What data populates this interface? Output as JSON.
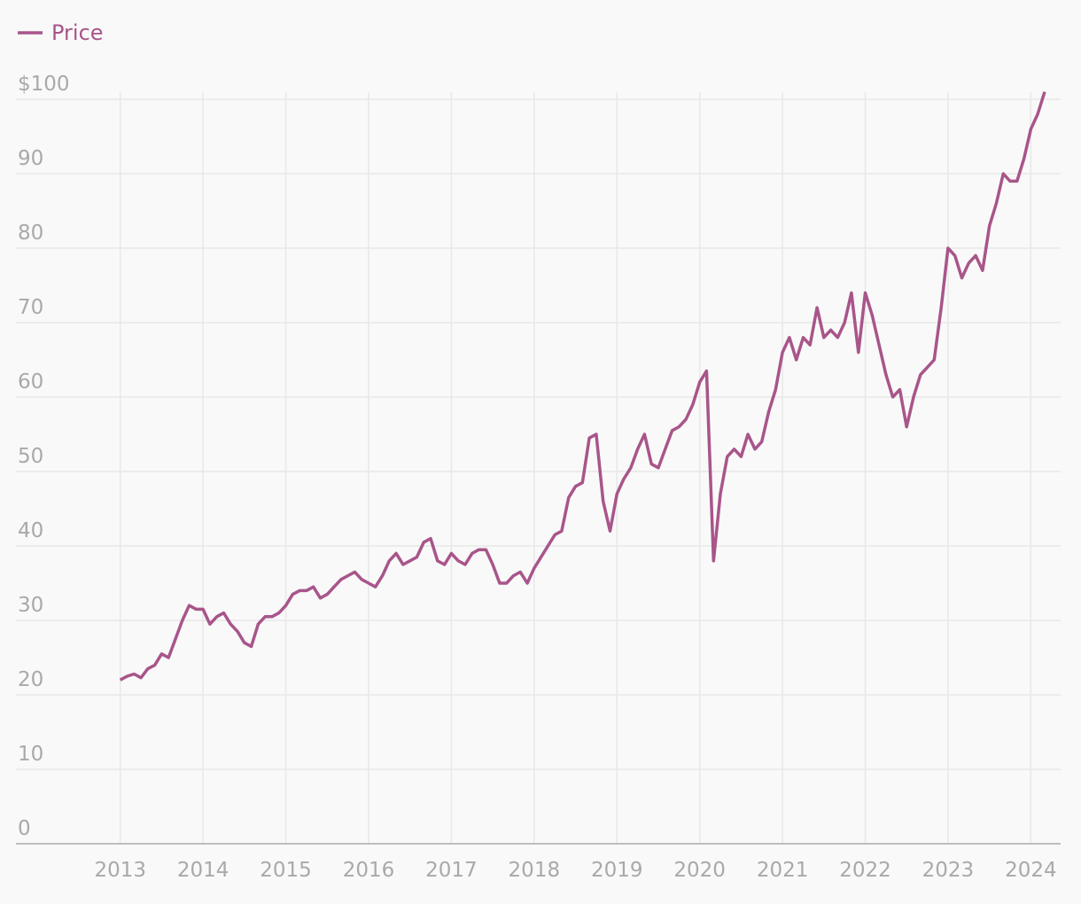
{
  "chart_data": {
    "type": "line",
    "x": [
      2013,
      2013.083,
      2013.167,
      2013.25,
      2013.333,
      2013.417,
      2013.5,
      2013.583,
      2013.667,
      2013.75,
      2013.833,
      2013.917,
      2014,
      2014.083,
      2014.167,
      2014.25,
      2014.333,
      2014.417,
      2014.5,
      2014.583,
      2014.667,
      2014.75,
      2014.833,
      2014.917,
      2015,
      2015.083,
      2015.167,
      2015.25,
      2015.333,
      2015.417,
      2015.5,
      2015.583,
      2015.667,
      2015.75,
      2015.833,
      2015.917,
      2016,
      2016.083,
      2016.167,
      2016.25,
      2016.333,
      2016.417,
      2016.5,
      2016.583,
      2016.667,
      2016.75,
      2016.833,
      2016.917,
      2017,
      2017.083,
      2017.167,
      2017.25,
      2017.333,
      2017.417,
      2017.5,
      2017.583,
      2017.667,
      2017.75,
      2017.833,
      2017.917,
      2018,
      2018.083,
      2018.167,
      2018.25,
      2018.333,
      2018.417,
      2018.5,
      2018.583,
      2018.667,
      2018.75,
      2018.833,
      2018.917,
      2019,
      2019.083,
      2019.167,
      2019.25,
      2019.333,
      2019.417,
      2019.5,
      2019.583,
      2019.667,
      2019.75,
      2019.833,
      2019.917,
      2020,
      2020.083,
      2020.167,
      2020.25,
      2020.333,
      2020.417,
      2020.5,
      2020.583,
      2020.667,
      2020.75,
      2020.833,
      2020.917,
      2021,
      2021.083,
      2021.167,
      2021.25,
      2021.333,
      2021.417,
      2021.5,
      2021.583,
      2021.667,
      2021.75,
      2021.833,
      2021.917,
      2022,
      2022.083,
      2022.167,
      2022.25,
      2022.333,
      2022.417,
      2022.5,
      2022.583,
      2022.667,
      2022.75,
      2022.833,
      2022.917,
      2023,
      2023.083,
      2023.167,
      2023.25,
      2023.333,
      2023.417,
      2023.5,
      2023.583,
      2023.667,
      2023.75,
      2023.833,
      2023.917,
      2024,
      2024.083,
      2024.167
    ],
    "series": [
      {
        "name": "Price",
        "color": "#a8558a",
        "values": [
          22,
          22.5,
          22.8,
          22.3,
          23.5,
          24,
          25.5,
          25,
          27.5,
          30,
          32,
          31.5,
          31.5,
          29.5,
          30.5,
          31,
          29.5,
          28.5,
          27,
          26.5,
          29.5,
          30.5,
          30.5,
          31,
          32,
          33.5,
          34,
          34,
          34.5,
          33,
          33.5,
          34.5,
          35.5,
          36,
          36.5,
          35.5,
          35,
          34.5,
          36,
          38,
          39,
          37.5,
          38,
          38.5,
          40.5,
          41,
          38,
          37.5,
          39,
          38,
          37.5,
          39,
          39.5,
          39.5,
          37.5,
          35,
          35,
          36,
          36.5,
          35,
          37,
          38.5,
          40,
          41.5,
          42,
          46.5,
          48,
          48.5,
          54.5,
          55,
          46,
          42,
          47,
          49,
          50.5,
          53,
          55,
          51,
          50.5,
          53,
          55.5,
          56,
          57,
          59,
          62,
          63.5,
          38,
          47,
          52,
          53,
          52,
          55,
          53,
          54,
          58,
          61,
          66,
          68,
          65,
          68,
          67,
          72,
          68,
          69,
          68,
          70,
          74,
          66,
          74,
          71,
          67,
          63,
          60,
          61,
          56,
          60,
          63,
          64,
          65,
          72,
          80,
          79,
          76,
          78,
          79,
          77,
          83,
          86,
          90,
          89,
          89,
          92,
          96,
          98,
          101
        ]
      }
    ],
    "xlim": [
      2011.74,
      2024.36
    ],
    "xticks": [
      2013,
      2014,
      2015,
      2016,
      2017,
      2018,
      2019,
      2020,
      2021,
      2022,
      2023,
      2024
    ],
    "ylim": [
      0,
      100
    ],
    "yticks": [
      0,
      10,
      20,
      30,
      40,
      50,
      60,
      70,
      80,
      90,
      {
        "value": 100,
        "label": "$100"
      }
    ],
    "grid": true,
    "legend": "top-left"
  }
}
